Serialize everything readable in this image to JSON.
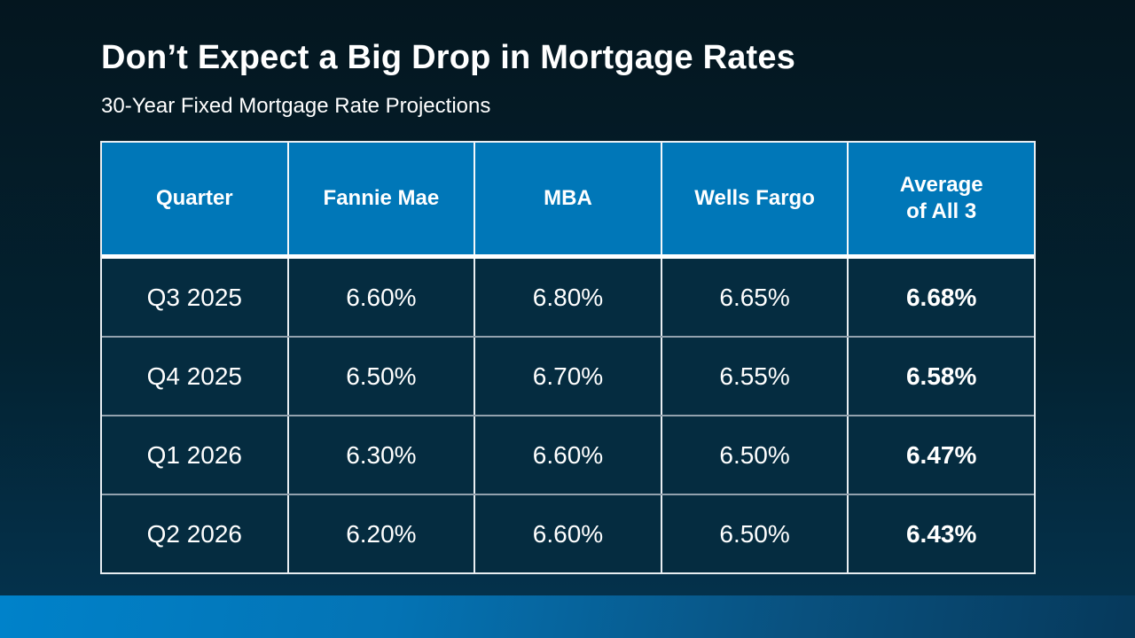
{
  "slide": {
    "title": "Don’t Expect a Big Drop in Mortgage Rates",
    "subtitle": "30-Year Fixed Mortgage Rate Projections"
  },
  "chart_data": {
    "type": "table",
    "title": "30-Year Fixed Mortgage Rate Projections",
    "columns": [
      "Quarter",
      "Fannie Mae",
      "MBA",
      "Wells Fargo",
      "Average\nof All 3"
    ],
    "rows": [
      [
        "Q3 2025",
        "6.60%",
        "6.80%",
        "6.65%",
        "6.68%"
      ],
      [
        "Q4 2025",
        "6.50%",
        "6.70%",
        "6.55%",
        "6.58%"
      ],
      [
        "Q1 2026",
        "6.30%",
        "6.60%",
        "6.50%",
        "6.47%"
      ],
      [
        "Q2 2026",
        "6.20%",
        "6.60%",
        "6.50%",
        "6.43%"
      ]
    ]
  },
  "colors": {
    "header_bg": "#0077B8",
    "cell_bg": "#052C40",
    "page_bg_top": "#04161F",
    "page_bg_bottom": "#043450",
    "accent_bar_left": "#0082CA",
    "accent_bar_right": "#06395B",
    "row_divider": "#93A2AE",
    "cell_border": "#E9EEF2",
    "text": "#FFFFFF"
  }
}
